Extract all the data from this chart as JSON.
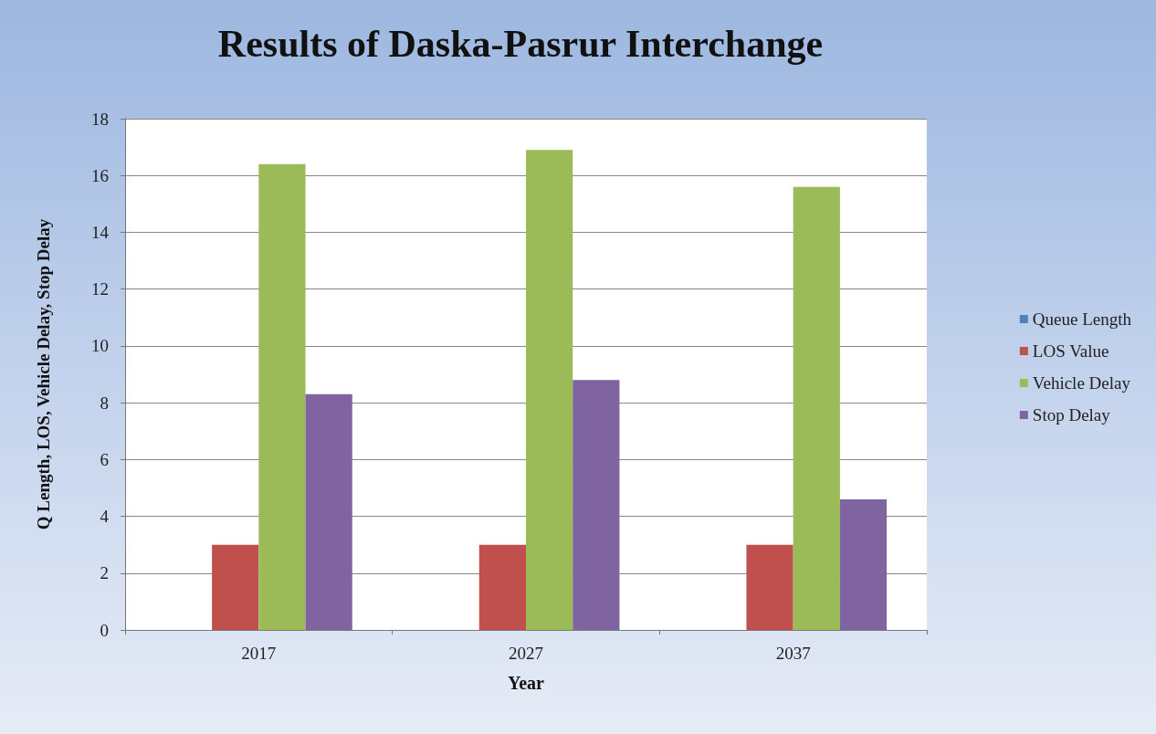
{
  "chart_data": {
    "type": "bar",
    "title": "Results of Daska-Pasrur Interchange",
    "xlabel": "Year",
    "ylabel": "Q Length, LOS, Vehicle Delay, Stop Delay",
    "categories": [
      "2017",
      "2027",
      "2037"
    ],
    "series": [
      {
        "name": "Queue Length",
        "color": "#4f81bd",
        "values": [
          0,
          0,
          0
        ]
      },
      {
        "name": "LOS Value",
        "color": "#c0504d",
        "values": [
          3,
          3,
          3
        ]
      },
      {
        "name": "Vehicle Delay",
        "color": "#9bbb59",
        "values": [
          16.4,
          16.9,
          15.6
        ]
      },
      {
        "name": "Stop Delay",
        "color": "#8064a2",
        "values": [
          8.3,
          8.8,
          4.6
        ]
      }
    ],
    "ylim": [
      0,
      18
    ],
    "yticks": [
      0,
      2,
      4,
      6,
      8,
      10,
      12,
      14,
      16,
      18
    ],
    "grid": "y",
    "legend": "right"
  }
}
